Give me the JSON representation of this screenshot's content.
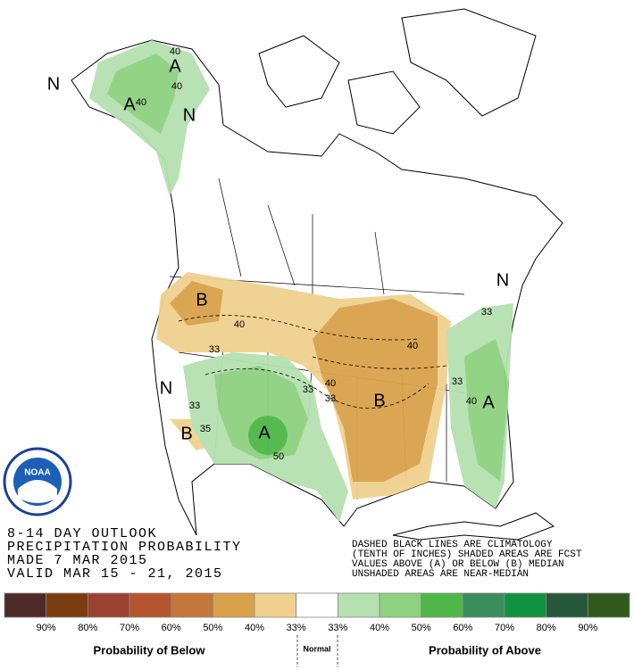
{
  "map": {
    "labels": [
      "A",
      "40",
      "40",
      "40",
      "A",
      "N",
      "N",
      "B",
      "40",
      "33",
      "33",
      "40",
      "33",
      "40",
      "B",
      "N",
      "33",
      "33",
      "40",
      "A",
      "N",
      "33",
      "B",
      "35",
      "A",
      "50"
    ]
  },
  "logo": {
    "text": "NOAA"
  },
  "title_lines": [
    "8-14 DAY OUTLOOK",
    "PRECIPITATION PROBABILITY",
    "MADE  7 MAR 2015",
    "VALID  MAR 15 - 21, 2015"
  ],
  "notes": [
    "DASHED BLACK LINES ARE CLIMATOLOGY",
    "(TENTH OF INCHES) SHADED AREAS ARE FCST",
    "VALUES ABOVE (A) OR BELOW (B) MEDIAN",
    "UNSHADED AREAS ARE NEAR-MEDIAN"
  ],
  "legend": {
    "below": {
      "title": "Probability of Below",
      "items": [
        {
          "label": "90%",
          "color": "#4d2a28"
        },
        {
          "label": "80%",
          "color": "#7b3c10"
        },
        {
          "label": "70%",
          "color": "#9b4330"
        },
        {
          "label": "60%",
          "color": "#b5552f"
        },
        {
          "label": "50%",
          "color": "#c4773a"
        },
        {
          "label": "40%",
          "color": "#d9a24a"
        },
        {
          "label": "33%",
          "color": "#f0d18f"
        }
      ]
    },
    "normal": {
      "title": "Normal",
      "color": "#ffffff"
    },
    "above": {
      "title": "Probability of Above",
      "items": [
        {
          "label": "33%",
          "color": "#b5e0b0"
        },
        {
          "label": "40%",
          "color": "#8ed17f"
        },
        {
          "label": "50%",
          "color": "#4fb748"
        },
        {
          "label": "60%",
          "color": "#3a8e5e"
        },
        {
          "label": "70%",
          "color": "#10923f"
        },
        {
          "label": "80%",
          "color": "#27573a"
        },
        {
          "label": "90%",
          "color": "#2f5a1c"
        }
      ]
    }
  }
}
